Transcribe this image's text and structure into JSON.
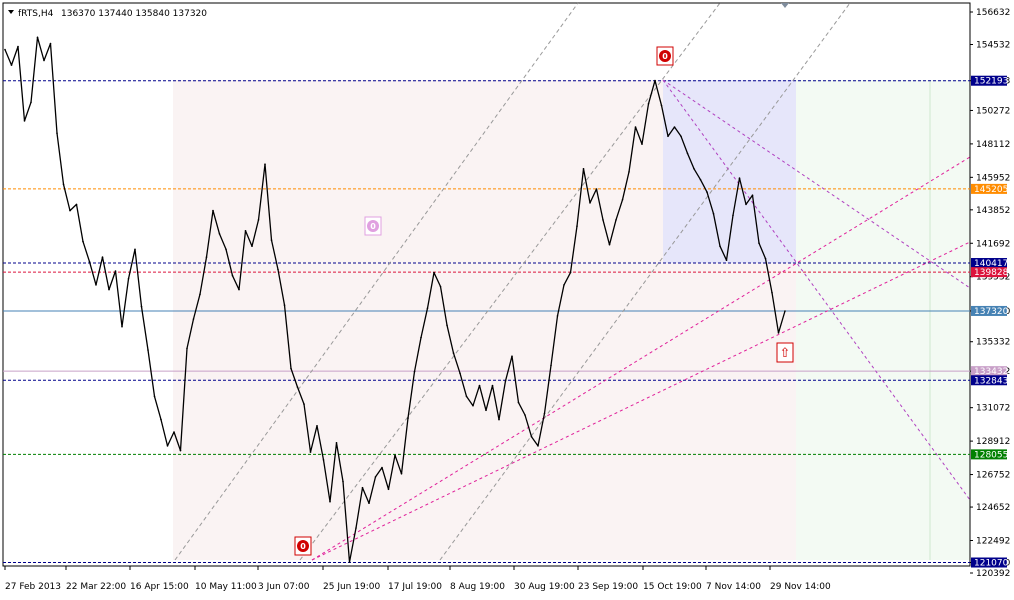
{
  "header": {
    "symbol": "fRTS,H4",
    "ohlc": "136370 137440 135840 137320"
  },
  "chart_data": {
    "type": "line",
    "instrument": "fRTS",
    "timeframe": "H4",
    "ylim": [
      120392,
      156632
    ],
    "y_ticks": [
      "156632",
      "154532",
      "152193",
      "150272",
      "148112",
      "145952",
      "143852",
      "141692",
      "139532",
      "137320",
      "135332",
      "133432",
      "131072",
      "128912",
      "126752",
      "124652",
      "122492",
      "121070",
      "120392"
    ],
    "x_ticks": [
      "27 Feb 2013",
      "22 Mar 22:00",
      "16 Apr 15:00",
      "10 May 11:00",
      "3 Jun 07:00",
      "25 Jun 19:00",
      "17 Jul 19:00",
      "8 Aug 19:00",
      "30 Aug 19:00",
      "23 Sep 19:00",
      "15 Oct 19:00",
      "7 Nov 14:00",
      "29 Nov 14:00"
    ],
    "levels": [
      {
        "label": "152193",
        "value": 152193,
        "color": "#00008b",
        "style": "dash"
      },
      {
        "label": "145205",
        "value": 145205,
        "color": "#ff8c00",
        "style": "dash"
      },
      {
        "label": "140417",
        "value": 140417,
        "color": "#00008b",
        "style": "dash"
      },
      {
        "label": "139828",
        "value": 139828,
        "color": "#dc143c",
        "style": "dash"
      },
      {
        "label": "137320",
        "value": 137320,
        "color": "#4682b4",
        "style": "solid"
      },
      {
        "label": "133432",
        "value": 133432,
        "color": "#c8a0c8",
        "style": "solid"
      },
      {
        "label": "132843",
        "value": 132843,
        "color": "#00008b",
        "style": "dash"
      },
      {
        "label": "128055",
        "value": 128055,
        "color": "#008000",
        "style": "dash"
      },
      {
        "label": "121070",
        "value": 121070,
        "color": "#00008b",
        "style": "dash"
      }
    ],
    "series": [
      {
        "values": [
          [
            0,
            154200
          ],
          [
            1,
            153200
          ],
          [
            2,
            154400
          ],
          [
            3,
            149600
          ],
          [
            4,
            150800
          ],
          [
            5,
            155000
          ],
          [
            6,
            153500
          ],
          [
            7,
            154600
          ],
          [
            8,
            148800
          ],
          [
            9,
            145500
          ],
          [
            10,
            143800
          ],
          [
            11,
            144200
          ],
          [
            12,
            141800
          ],
          [
            13,
            140500
          ],
          [
            14,
            139000
          ],
          [
            15,
            140800
          ],
          [
            16,
            138700
          ],
          [
            17,
            139900
          ],
          [
            18,
            136300
          ],
          [
            19,
            139400
          ],
          [
            20,
            141300
          ],
          [
            21,
            137600
          ],
          [
            22,
            134800
          ],
          [
            23,
            131800
          ],
          [
            24,
            130300
          ],
          [
            25,
            128600
          ],
          [
            26,
            129500
          ],
          [
            27,
            128300
          ],
          [
            28,
            134900
          ],
          [
            29,
            136800
          ],
          [
            30,
            138400
          ],
          [
            31,
            140800
          ],
          [
            32,
            143800
          ],
          [
            33,
            142300
          ],
          [
            34,
            141300
          ],
          [
            35,
            139600
          ],
          [
            36,
            138700
          ],
          [
            37,
            142500
          ],
          [
            38,
            141500
          ],
          [
            39,
            143200
          ],
          [
            40,
            146800
          ],
          [
            41,
            141900
          ],
          [
            42,
            140000
          ],
          [
            43,
            137700
          ],
          [
            44,
            133600
          ],
          [
            45,
            132400
          ],
          [
            46,
            131300
          ],
          [
            47,
            128200
          ],
          [
            48,
            129900
          ],
          [
            49,
            127700
          ],
          [
            50,
            125000
          ],
          [
            51,
            128800
          ],
          [
            52,
            126300
          ],
          [
            53,
            121100
          ],
          [
            54,
            123300
          ],
          [
            55,
            125900
          ],
          [
            56,
            124900
          ],
          [
            57,
            126600
          ],
          [
            58,
            127200
          ],
          [
            59,
            125800
          ],
          [
            60,
            128000
          ],
          [
            61,
            126800
          ],
          [
            62,
            130400
          ],
          [
            63,
            133400
          ],
          [
            64,
            135600
          ],
          [
            65,
            137500
          ],
          [
            66,
            139800
          ],
          [
            67,
            138900
          ],
          [
            68,
            136400
          ],
          [
            69,
            134600
          ],
          [
            70,
            133300
          ],
          [
            71,
            131800
          ],
          [
            72,
            131200
          ],
          [
            73,
            132500
          ],
          [
            74,
            130900
          ],
          [
            75,
            132500
          ],
          [
            76,
            130300
          ],
          [
            77,
            132800
          ],
          [
            78,
            134400
          ],
          [
            79,
            131400
          ],
          [
            80,
            130600
          ],
          [
            81,
            129200
          ],
          [
            82,
            128600
          ],
          [
            83,
            130700
          ],
          [
            84,
            133800
          ],
          [
            85,
            137000
          ],
          [
            86,
            139000
          ],
          [
            87,
            139800
          ],
          [
            88,
            142800
          ],
          [
            89,
            146500
          ],
          [
            90,
            144300
          ],
          [
            91,
            145200
          ],
          [
            92,
            143200
          ],
          [
            93,
            141600
          ],
          [
            94,
            143200
          ],
          [
            95,
            144500
          ],
          [
            96,
            146300
          ],
          [
            97,
            149200
          ],
          [
            98,
            148100
          ],
          [
            99,
            150700
          ],
          [
            100,
            152200
          ],
          [
            101,
            150600
          ],
          [
            102,
            148600
          ],
          [
            103,
            149200
          ],
          [
            104,
            148600
          ],
          [
            105,
            147500
          ],
          [
            106,
            146500
          ],
          [
            107,
            145800
          ],
          [
            108,
            145000
          ],
          [
            109,
            143600
          ],
          [
            110,
            141500
          ],
          [
            111,
            140600
          ],
          [
            112,
            143500
          ],
          [
            113,
            145900
          ],
          [
            114,
            144200
          ],
          [
            115,
            144800
          ],
          [
            116,
            141700
          ],
          [
            117,
            140700
          ],
          [
            118,
            138500
          ],
          [
            119,
            135900
          ],
          [
            120,
            137320
          ]
        ]
      }
    ]
  },
  "markers": {
    "m1": "0",
    "m2": "0",
    "m3": "0",
    "arrow": "⇧"
  }
}
